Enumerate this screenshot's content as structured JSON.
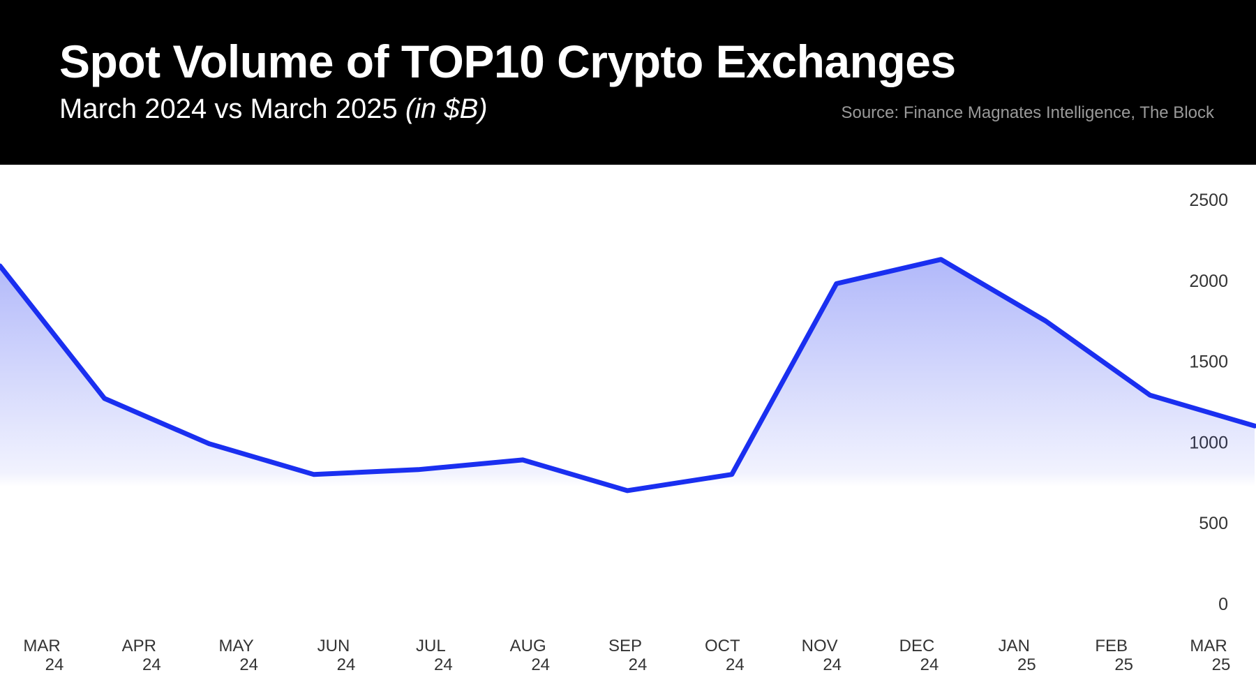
{
  "header": {
    "title": "Spot Volume of TOP10 Crypto Exchanges",
    "subtitle": "March 2024 vs March 2025",
    "subtitle_unit": "(in $B)",
    "source": "Source: Finance Magnates Intelligence, The Block"
  },
  "colors": {
    "line": "#1a2ff0",
    "header_bg": "#000000"
  },
  "chart_data": {
    "type": "area",
    "title": "Spot Volume of TOP10 Crypto Exchanges",
    "subtitle": "March 2024 vs March 2025",
    "categories": [
      [
        "MAR",
        "24"
      ],
      [
        "APR",
        "24"
      ],
      [
        "MAY",
        "24"
      ],
      [
        "JUN",
        "24"
      ],
      [
        "JUL",
        "24"
      ],
      [
        "AUG",
        "24"
      ],
      [
        "SEP",
        "24"
      ],
      [
        "OCT",
        "24"
      ],
      [
        "NOV",
        "24"
      ],
      [
        "DEC",
        "24"
      ],
      [
        "JAN",
        "25"
      ],
      [
        "FEB",
        "25"
      ],
      [
        "MAR",
        "25"
      ]
    ],
    "values": [
      2090,
      1270,
      990,
      800,
      830,
      890,
      700,
      800,
      1980,
      2130,
      1750,
      1290,
      1100
    ],
    "ylim": [
      0,
      2500
    ],
    "yticks": [
      0,
      500,
      1000,
      1500,
      2000,
      2500
    ],
    "ytick_labels": [
      "0",
      "500",
      "1000",
      "1500",
      "2000",
      "2500"
    ],
    "y_axis_position": "right",
    "grid": false,
    "legend": "none"
  }
}
